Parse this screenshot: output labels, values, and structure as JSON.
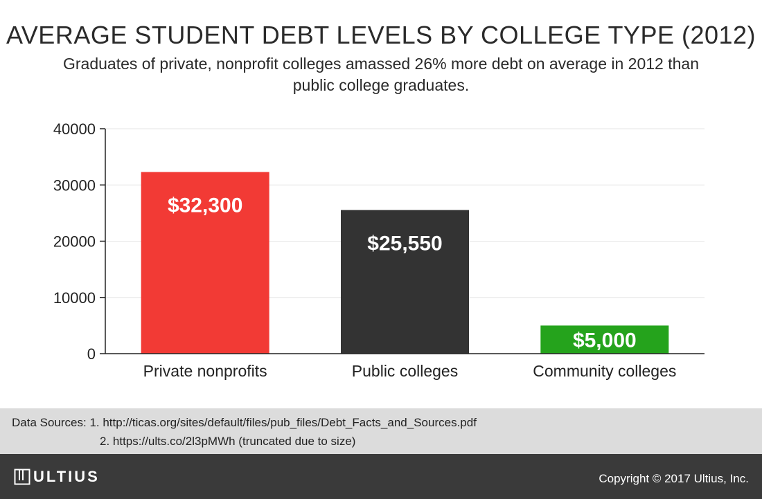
{
  "title": "AVERAGE STUDENT DEBT LEVELS BY COLLEGE TYPE (2012)",
  "subtitle": "Graduates of private, nonprofit colleges amassed 26% more debt on average in 2012 than public college graduates.",
  "chart_data": {
    "type": "bar",
    "categories": [
      "Private nonprofits",
      "Public colleges",
      "Community colleges"
    ],
    "values": [
      32300,
      25550,
      5000
    ],
    "data_labels": [
      "$32,300",
      "$25,550",
      "$5,000"
    ],
    "colors": [
      "#f23a35",
      "#333333",
      "#25a31c"
    ],
    "ylim": [
      0,
      40000
    ],
    "yticks": [
      0,
      10000,
      20000,
      30000,
      40000
    ],
    "grid": true,
    "xlabel": "",
    "ylabel": ""
  },
  "sources": {
    "line1": "Data Sources: 1. http://ticas.org/sites/default/files/pub_files/Debt_Facts_and_Sources.pdf",
    "line2": "2. https://ults.co/2l3pMWh (truncated due to size)"
  },
  "footer": {
    "logo_text": "ULTIUS",
    "logo_icon": "ultius-logo-icon",
    "copyright": "Copyright © 2017 Ultius, Inc."
  },
  "colors": {
    "grid": "#e6e6e6",
    "axis": "#222222",
    "sources_background": "#dcdcdc",
    "footer_background": "#3a3a3a"
  }
}
